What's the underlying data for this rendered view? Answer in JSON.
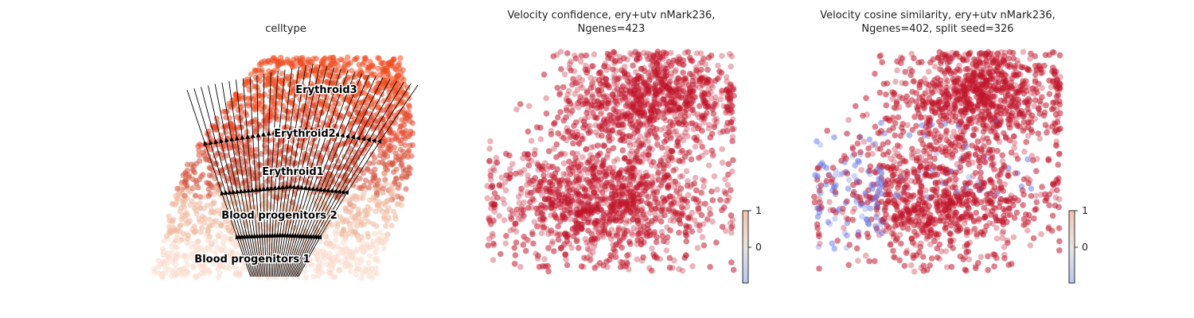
{
  "chart_data": [
    {
      "type": "scatter",
      "title": "celltype",
      "overlay": "velocity streamlines",
      "colors": {
        "Blood progenitors 1": "#f9dccd",
        "Blood progenitors 2": "#efb9a0",
        "Erythroid1": "#d4553f",
        "Erythroid2": "#e5482f",
        "Erythroid3": "#f14e22"
      },
      "cluster_labels": [
        {
          "name": "Erythroid3"
        },
        {
          "name": "Erythroid2"
        },
        {
          "name": "Erythroid1"
        },
        {
          "name": "Blood progenitors 2"
        },
        {
          "name": "Blood progenitors 1"
        }
      ]
    },
    {
      "type": "scatter",
      "title_lines": [
        "Velocity confidence, ery+utv nMark236,",
        "Ngenes=423"
      ],
      "colormap": "coolwarm",
      "colorbar": {
        "ticks": [
          "1",
          "0"
        ],
        "low_color": "#b8c6ef",
        "mid_color": "#eeeeee",
        "high_color": "#f1c4b0"
      },
      "point_color": "#c1172c"
    },
    {
      "type": "scatter",
      "title_lines": [
        "Velocity cosine similarity, ery+utv nMark236,",
        "Ngenes=402, split seed=326"
      ],
      "colormap": "coolwarm",
      "colorbar": {
        "ticks": [
          "1",
          "0"
        ],
        "low_color": "#b8c6ef",
        "mid_color": "#eeeeee",
        "high_color": "#f1c4b0"
      },
      "point_color": "#c1172c",
      "low_point_color": "#6f7ee6"
    }
  ]
}
